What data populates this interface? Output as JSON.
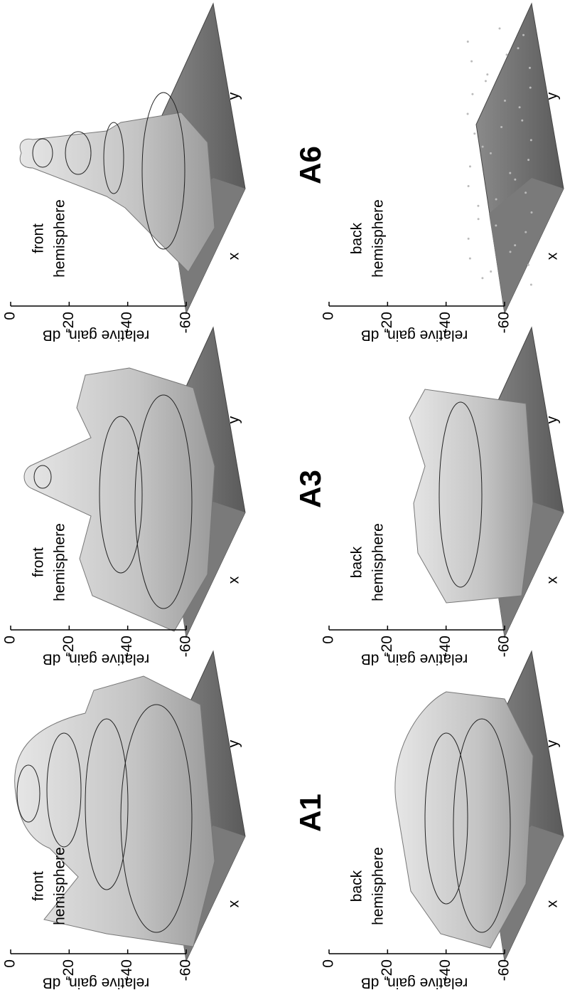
{
  "figure": {
    "columns": [
      {
        "label": "A6",
        "panels": [
          {
            "hemisphere": [
              "front",
              "hemisphere"
            ],
            "zlabel": "relative gain, dB",
            "zlim": [
              -60,
              0
            ],
            "zticks": [
              0,
              -20,
              -40,
              -60
            ],
            "xlabel": "x",
            "ylabel": "y"
          },
          {
            "hemisphere": [
              "back",
              "hemisphere"
            ],
            "zlabel": "relative gain, dB",
            "zlim": [
              -60,
              0
            ],
            "zticks": [
              0,
              -20,
              -40,
              -60
            ],
            "xlabel": "x",
            "ylabel": "y"
          }
        ]
      },
      {
        "label": "A3",
        "panels": [
          {
            "hemisphere": [
              "front",
              "hemisphere"
            ],
            "zlabel": "relative gain, dB",
            "zlim": [
              -60,
              0
            ],
            "zticks": [
              0,
              -20,
              -40,
              -60
            ],
            "xlabel": "x",
            "ylabel": "y"
          },
          {
            "hemisphere": [
              "back",
              "hemisphere"
            ],
            "zlabel": "relative gain, dB",
            "zlim": [
              -60,
              0
            ],
            "zticks": [
              0,
              -20,
              -40,
              -60
            ],
            "xlabel": "x",
            "ylabel": "y"
          }
        ]
      },
      {
        "label": "A1",
        "panels": [
          {
            "hemisphere": [
              "front",
              "hemisphere"
            ],
            "zlabel": "relative gain, dB",
            "zlim": [
              -60,
              0
            ],
            "zticks": [
              0,
              -20,
              -40,
              -60
            ],
            "xlabel": "x",
            "ylabel": "y"
          },
          {
            "hemisphere": [
              "back",
              "hemisphere"
            ],
            "zlabel": "relative gain, dB",
            "zlim": [
              -60,
              0
            ],
            "zticks": [
              0,
              -20,
              -40,
              -60
            ],
            "xlabel": "x",
            "ylabel": "y"
          }
        ]
      }
    ]
  }
}
